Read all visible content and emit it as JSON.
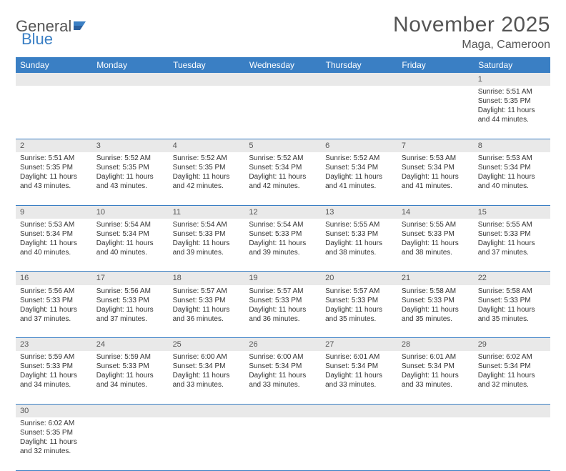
{
  "logo": {
    "text1": "General",
    "text2": "Blue"
  },
  "title": "November 2025",
  "location": "Maga, Cameroon",
  "colors": {
    "header_bg": "#3a7fc4",
    "header_text": "#ffffff",
    "daynum_bg": "#e9e9e9",
    "rule": "#3a7fc4",
    "text": "#333333",
    "title_text": "#555555"
  },
  "weekdays": [
    "Sunday",
    "Monday",
    "Tuesday",
    "Wednesday",
    "Thursday",
    "Friday",
    "Saturday"
  ],
  "weeks": [
    [
      null,
      null,
      null,
      null,
      null,
      null,
      {
        "n": "1",
        "sr": "Sunrise: 5:51 AM",
        "ss": "Sunset: 5:35 PM",
        "dl": "Daylight: 11 hours and 44 minutes."
      }
    ],
    [
      {
        "n": "2",
        "sr": "Sunrise: 5:51 AM",
        "ss": "Sunset: 5:35 PM",
        "dl": "Daylight: 11 hours and 43 minutes."
      },
      {
        "n": "3",
        "sr": "Sunrise: 5:52 AM",
        "ss": "Sunset: 5:35 PM",
        "dl": "Daylight: 11 hours and 43 minutes."
      },
      {
        "n": "4",
        "sr": "Sunrise: 5:52 AM",
        "ss": "Sunset: 5:35 PM",
        "dl": "Daylight: 11 hours and 42 minutes."
      },
      {
        "n": "5",
        "sr": "Sunrise: 5:52 AM",
        "ss": "Sunset: 5:34 PM",
        "dl": "Daylight: 11 hours and 42 minutes."
      },
      {
        "n": "6",
        "sr": "Sunrise: 5:52 AM",
        "ss": "Sunset: 5:34 PM",
        "dl": "Daylight: 11 hours and 41 minutes."
      },
      {
        "n": "7",
        "sr": "Sunrise: 5:53 AM",
        "ss": "Sunset: 5:34 PM",
        "dl": "Daylight: 11 hours and 41 minutes."
      },
      {
        "n": "8",
        "sr": "Sunrise: 5:53 AM",
        "ss": "Sunset: 5:34 PM",
        "dl": "Daylight: 11 hours and 40 minutes."
      }
    ],
    [
      {
        "n": "9",
        "sr": "Sunrise: 5:53 AM",
        "ss": "Sunset: 5:34 PM",
        "dl": "Daylight: 11 hours and 40 minutes."
      },
      {
        "n": "10",
        "sr": "Sunrise: 5:54 AM",
        "ss": "Sunset: 5:34 PM",
        "dl": "Daylight: 11 hours and 40 minutes."
      },
      {
        "n": "11",
        "sr": "Sunrise: 5:54 AM",
        "ss": "Sunset: 5:33 PM",
        "dl": "Daylight: 11 hours and 39 minutes."
      },
      {
        "n": "12",
        "sr": "Sunrise: 5:54 AM",
        "ss": "Sunset: 5:33 PM",
        "dl": "Daylight: 11 hours and 39 minutes."
      },
      {
        "n": "13",
        "sr": "Sunrise: 5:55 AM",
        "ss": "Sunset: 5:33 PM",
        "dl": "Daylight: 11 hours and 38 minutes."
      },
      {
        "n": "14",
        "sr": "Sunrise: 5:55 AM",
        "ss": "Sunset: 5:33 PM",
        "dl": "Daylight: 11 hours and 38 minutes."
      },
      {
        "n": "15",
        "sr": "Sunrise: 5:55 AM",
        "ss": "Sunset: 5:33 PM",
        "dl": "Daylight: 11 hours and 37 minutes."
      }
    ],
    [
      {
        "n": "16",
        "sr": "Sunrise: 5:56 AM",
        "ss": "Sunset: 5:33 PM",
        "dl": "Daylight: 11 hours and 37 minutes."
      },
      {
        "n": "17",
        "sr": "Sunrise: 5:56 AM",
        "ss": "Sunset: 5:33 PM",
        "dl": "Daylight: 11 hours and 37 minutes."
      },
      {
        "n": "18",
        "sr": "Sunrise: 5:57 AM",
        "ss": "Sunset: 5:33 PM",
        "dl": "Daylight: 11 hours and 36 minutes."
      },
      {
        "n": "19",
        "sr": "Sunrise: 5:57 AM",
        "ss": "Sunset: 5:33 PM",
        "dl": "Daylight: 11 hours and 36 minutes."
      },
      {
        "n": "20",
        "sr": "Sunrise: 5:57 AM",
        "ss": "Sunset: 5:33 PM",
        "dl": "Daylight: 11 hours and 35 minutes."
      },
      {
        "n": "21",
        "sr": "Sunrise: 5:58 AM",
        "ss": "Sunset: 5:33 PM",
        "dl": "Daylight: 11 hours and 35 minutes."
      },
      {
        "n": "22",
        "sr": "Sunrise: 5:58 AM",
        "ss": "Sunset: 5:33 PM",
        "dl": "Daylight: 11 hours and 35 minutes."
      }
    ],
    [
      {
        "n": "23",
        "sr": "Sunrise: 5:59 AM",
        "ss": "Sunset: 5:33 PM",
        "dl": "Daylight: 11 hours and 34 minutes."
      },
      {
        "n": "24",
        "sr": "Sunrise: 5:59 AM",
        "ss": "Sunset: 5:33 PM",
        "dl": "Daylight: 11 hours and 34 minutes."
      },
      {
        "n": "25",
        "sr": "Sunrise: 6:00 AM",
        "ss": "Sunset: 5:34 PM",
        "dl": "Daylight: 11 hours and 33 minutes."
      },
      {
        "n": "26",
        "sr": "Sunrise: 6:00 AM",
        "ss": "Sunset: 5:34 PM",
        "dl": "Daylight: 11 hours and 33 minutes."
      },
      {
        "n": "27",
        "sr": "Sunrise: 6:01 AM",
        "ss": "Sunset: 5:34 PM",
        "dl": "Daylight: 11 hours and 33 minutes."
      },
      {
        "n": "28",
        "sr": "Sunrise: 6:01 AM",
        "ss": "Sunset: 5:34 PM",
        "dl": "Daylight: 11 hours and 33 minutes."
      },
      {
        "n": "29",
        "sr": "Sunrise: 6:02 AM",
        "ss": "Sunset: 5:34 PM",
        "dl": "Daylight: 11 hours and 32 minutes."
      }
    ],
    [
      {
        "n": "30",
        "sr": "Sunrise: 6:02 AM",
        "ss": "Sunset: 5:35 PM",
        "dl": "Daylight: 11 hours and 32 minutes."
      },
      null,
      null,
      null,
      null,
      null,
      null
    ]
  ]
}
